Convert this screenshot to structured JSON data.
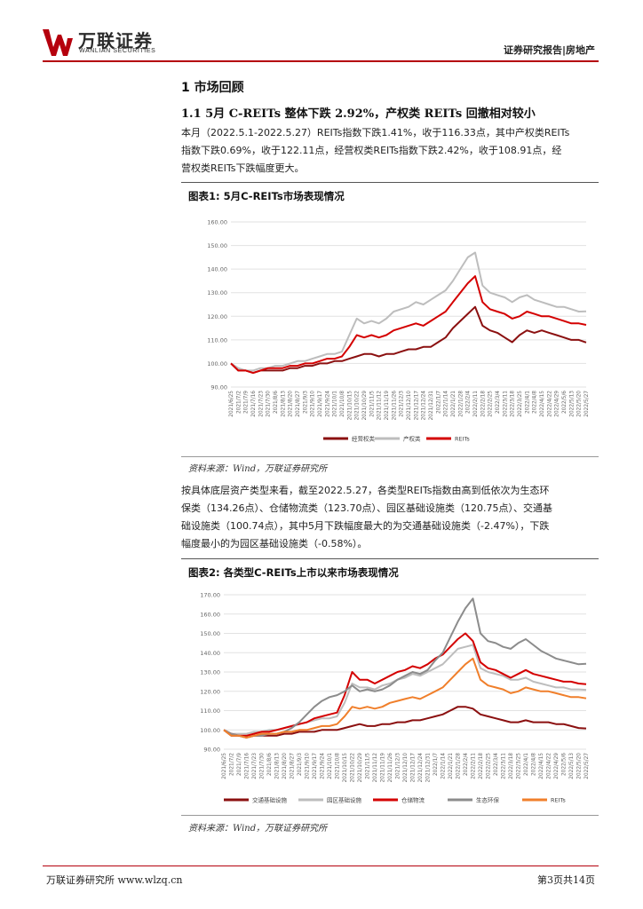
{
  "header": {
    "logo_cn": "万联证券",
    "logo_en": "WANLIAN SECURITIES",
    "report_type": "证券研究报告|房地产"
  },
  "section": {
    "title": "1   市场回顾",
    "subtitle": "1.1  5月 C-REITs 整体下跌 2.92%，产权类 REITs 回撤相对较小",
    "para1_lines": [
      "本月（2022.5.1-2022.5.27）REITs指数下跌1.41%，收于116.33点，其中产权类REITs",
      "指数下跌0.69%，收于122.11点，经营权类REITs指数下跌2.42%，收于108.91点，经",
      "营权类REITs下跌幅度更大。"
    ],
    "para2_lines": [
      "按具体底层资产类型来看，截至2022.5.27，各类型REITs指数由高到低依次为生态环",
      "保类（134.26点）、仓储物流类（123.70点）、园区基础设施类（120.75点）、交通基",
      "础设施类（100.74点），其中5月下跌幅度最大的为交通基础设施类（-2.47%），下跌",
      "幅度最小的为园区基础设施类（-0.58%）。"
    ]
  },
  "figure1": {
    "title": "图表1:  5月C-REITs市场表现情况",
    "source": "资料来源：Wind，万联证券研究所"
  },
  "figure2": {
    "title": "图表2:  各类型C-REITs上市以来市场表现情况",
    "source": "资料来源：Wind，万联证券研究所"
  },
  "footer": {
    "left": "万联证券研究所  www.wlzq.cn",
    "right": "第3页共14页"
  },
  "colors": {
    "brand_red": "#b5000d",
    "series_dark_red": "#8b1010",
    "series_red": "#d40000",
    "series_gray": "#bdbdbd",
    "series_dark_gray": "#8c8c8c",
    "series_orange": "#f07f2b"
  },
  "chart_data": [
    {
      "type": "line",
      "ylim": [
        90,
        160
      ],
      "y_ticks": [
        "90.00",
        "100.00",
        "110.00",
        "120.00",
        "130.00",
        "140.00",
        "150.00",
        "160.00"
      ],
      "categories": [
        "2021/6/25",
        "2021/7/2",
        "2021/7/9",
        "2021/7/16",
        "2021/7/23",
        "2021/7/30",
        "2021/8/6",
        "2021/8/13",
        "2021/8/20",
        "2021/8/27",
        "2021/9/3",
        "2021/9/10",
        "2021/9/17",
        "2021/9/24",
        "2021/10/1",
        "2021/10/8",
        "2021/10/15",
        "2021/10/22",
        "2021/10/29",
        "2021/11/5",
        "2021/11/12",
        "2021/11/19",
        "2021/11/26",
        "2021/12/3",
        "2021/12/10",
        "2021/12/17",
        "2021/12/24",
        "2021/12/31",
        "2022/1/7",
        "2022/1/14",
        "2022/1/21",
        "2022/1/28",
        "2022/2/4",
        "2022/2/11",
        "2022/2/18",
        "2022/2/25",
        "2022/3/4",
        "2022/3/11",
        "2022/3/18",
        "2022/3/25",
        "2022/4/1",
        "2022/4/8",
        "2022/4/15",
        "2022/4/22",
        "2022/4/29",
        "2022/5/6",
        "2022/5/13",
        "2022/5/20",
        "2022/5/27"
      ],
      "series": [
        {
          "name": "经营权类",
          "color": "#8b1010",
          "values": [
            100,
            97,
            97,
            96,
            97,
            97,
            97,
            97,
            98,
            98,
            99,
            99,
            100,
            100,
            101,
            101,
            102,
            103,
            104,
            104,
            103,
            104,
            104,
            105,
            106,
            106,
            107,
            107,
            109,
            111,
            115,
            118,
            121,
            124,
            116,
            114,
            113,
            111,
            109,
            112,
            114,
            113,
            114,
            113,
            112,
            111,
            110,
            110,
            108.91
          ]
        },
        {
          "name": "产权类",
          "color": "#bdbdbd",
          "values": [
            100,
            98,
            97,
            97,
            98,
            98,
            99,
            99,
            100,
            101,
            101,
            102,
            103,
            104,
            104,
            105,
            112,
            119,
            117,
            118,
            117,
            119,
            122,
            123,
            124,
            126,
            125,
            127,
            129,
            131,
            135,
            140,
            145,
            147,
            133,
            130,
            129,
            128,
            126,
            128,
            129,
            127,
            126,
            125,
            124,
            124,
            123,
            122,
            122.11
          ]
        },
        {
          "name": "REITs",
          "color": "#d40000",
          "values": [
            100,
            97,
            97,
            96,
            97,
            98,
            98,
            98,
            99,
            99,
            100,
            100,
            101,
            102,
            102,
            103,
            107,
            112,
            111,
            112,
            111,
            112,
            114,
            115,
            116,
            117,
            116,
            118,
            120,
            122,
            126,
            130,
            134,
            137,
            126,
            123,
            122,
            121,
            119,
            120,
            122,
            121,
            120,
            120,
            119,
            118,
            117,
            117,
            116.33
          ]
        }
      ]
    },
    {
      "type": "line",
      "ylim": [
        90,
        170
      ],
      "y_ticks": [
        "90.00",
        "100.00",
        "110.00",
        "120.00",
        "130.00",
        "140.00",
        "150.00",
        "160.00",
        "170.00"
      ],
      "categories": [
        "2021/6/25",
        "2021/7/2",
        "2021/7/9",
        "2021/7/16",
        "2021/7/23",
        "2021/7/30",
        "2021/8/6",
        "2021/8/13",
        "2021/8/20",
        "2021/8/27",
        "2021/9/3",
        "2021/9/10",
        "2021/9/17",
        "2021/9/24",
        "2021/10/1",
        "2021/10/8",
        "2021/10/15",
        "2021/10/22",
        "2021/10/29",
        "2021/11/5",
        "2021/11/12",
        "2021/11/19",
        "2021/11/26",
        "2021/12/3",
        "2021/12/10",
        "2021/12/17",
        "2021/12/24",
        "2021/12/31",
        "2022/1/7",
        "2022/1/14",
        "2022/1/21",
        "2022/1/28",
        "2022/2/4",
        "2022/2/11",
        "2022/2/18",
        "2022/2/25",
        "2022/3/4",
        "2022/3/11",
        "2022/3/18",
        "2022/3/25",
        "2022/4/1",
        "2022/4/8",
        "2022/4/15",
        "2022/4/22",
        "2022/4/29",
        "2022/5/6",
        "2022/5/13",
        "2022/5/20",
        "2022/5/27"
      ],
      "series": [
        {
          "name": "交通基础设施",
          "color": "#8b1010",
          "values": [
            100,
            97,
            97,
            96,
            97,
            97,
            97,
            97,
            98,
            98,
            99,
            99,
            99,
            100,
            100,
            100,
            101,
            102,
            103,
            102,
            102,
            103,
            103,
            104,
            104,
            105,
            105,
            106,
            107,
            108,
            110,
            112,
            112,
            111,
            108,
            107,
            106,
            105,
            104,
            104,
            105,
            104,
            104,
            104,
            103,
            103,
            102,
            101,
            100.74
          ]
        },
        {
          "name": "园区基础设施",
          "color": "#bdbdbd",
          "values": [
            100,
            98,
            98,
            98,
            99,
            99,
            100,
            100,
            101,
            102,
            103,
            104,
            105,
            106,
            106,
            107,
            114,
            124,
            122,
            122,
            121,
            123,
            124,
            126,
            127,
            129,
            128,
            130,
            132,
            134,
            138,
            142,
            143,
            144,
            132,
            130,
            129,
            128,
            126,
            126,
            127,
            125,
            124,
            123,
            122,
            122,
            121,
            121,
            120.75
          ]
        },
        {
          "name": "仓储物流",
          "color": "#d40000",
          "values": [
            100,
            98,
            97,
            97,
            98,
            99,
            99,
            100,
            101,
            102,
            103,
            104,
            106,
            107,
            108,
            109,
            118,
            130,
            126,
            126,
            124,
            126,
            128,
            130,
            131,
            133,
            132,
            134,
            137,
            139,
            143,
            147,
            150,
            146,
            135,
            132,
            131,
            129,
            127,
            129,
            131,
            129,
            128,
            127,
            126,
            125,
            125,
            124,
            123.7
          ]
        },
        {
          "name": "生态环保",
          "color": "#8c8c8c",
          "values": [
            100,
            98,
            97,
            96,
            97,
            97,
            98,
            98,
            99,
            101,
            104,
            108,
            112,
            115,
            117,
            118,
            120,
            123,
            120,
            121,
            120,
            121,
            123,
            126,
            128,
            130,
            129,
            131,
            136,
            140,
            148,
            156,
            163,
            168,
            150,
            146,
            145,
            143,
            142,
            145,
            147,
            144,
            141,
            139,
            137,
            136,
            135,
            134,
            134.26
          ]
        },
        {
          "name": "REITs",
          "color": "#f07f2b",
          "values": [
            100,
            97,
            97,
            96,
            97,
            98,
            98,
            98,
            99,
            99,
            100,
            100,
            101,
            102,
            102,
            103,
            107,
            112,
            111,
            112,
            111,
            112,
            114,
            115,
            116,
            117,
            116,
            118,
            120,
            122,
            126,
            130,
            134,
            137,
            126,
            123,
            122,
            121,
            119,
            120,
            122,
            121,
            120,
            120,
            119,
            118,
            117,
            117,
            116.33
          ]
        }
      ]
    }
  ]
}
